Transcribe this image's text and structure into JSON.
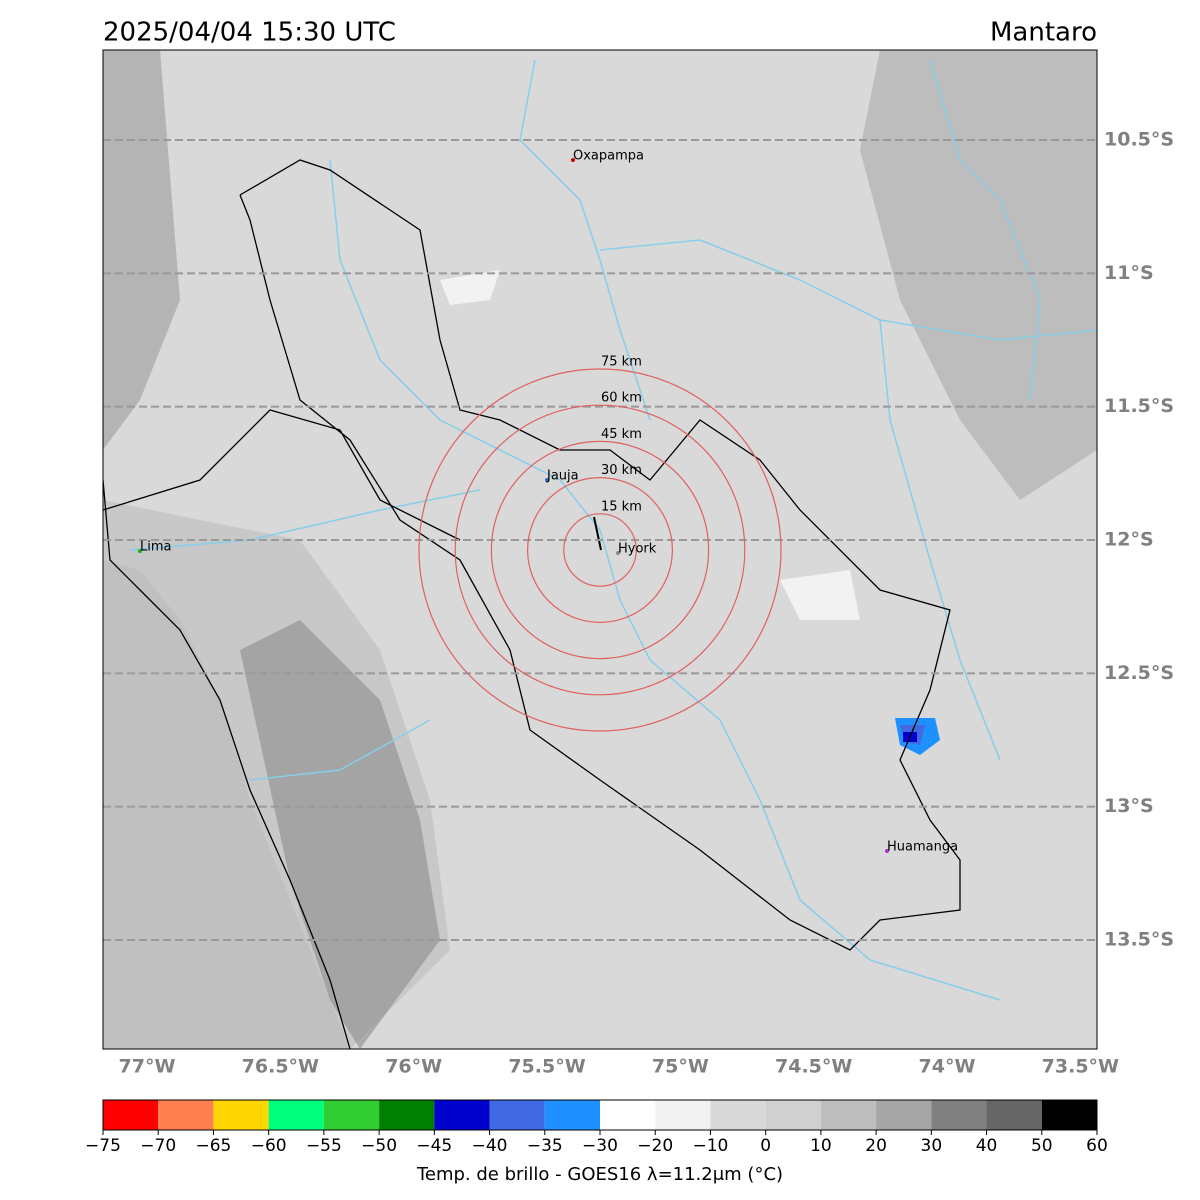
{
  "header": {
    "title": "2025/04/04 15:30 UTC",
    "region": "Mantaro"
  },
  "map": {
    "lat_ticks": [
      {
        "value": -10.5,
        "label": "10.5°S"
      },
      {
        "value": -11,
        "label": "11°S"
      },
      {
        "value": -11.5,
        "label": "11.5°S"
      },
      {
        "value": -12,
        "label": "12°S"
      },
      {
        "value": -12.5,
        "label": "12.5°S"
      },
      {
        "value": -13,
        "label": "13°S"
      },
      {
        "value": -13.5,
        "label": "13.5°S"
      }
    ],
    "lon_ticks": [
      {
        "value": -77,
        "label": "77°W"
      },
      {
        "value": -76.5,
        "label": "76.5°W"
      },
      {
        "value": -76,
        "label": "76°W"
      },
      {
        "value": -75.5,
        "label": "75.5°W"
      },
      {
        "value": -75,
        "label": "75°W"
      },
      {
        "value": -74.5,
        "label": "74.5°W"
      },
      {
        "value": -74,
        "label": "74°W"
      },
      {
        "value": -73.5,
        "label": "73.5°W"
      }
    ],
    "places": [
      "Oxapampa",
      "Jauja",
      "Lima",
      "Hyork",
      "Huamanga"
    ],
    "rings": [
      "15 km",
      "30 km",
      "45 km",
      "60 km",
      "75 km"
    ],
    "grid": true
  },
  "colorbar": {
    "ticks": [
      {
        "value": -75,
        "label": "−75"
      },
      {
        "value": -70,
        "label": "−70"
      },
      {
        "value": -65,
        "label": "−65"
      },
      {
        "value": -60,
        "label": "−60"
      },
      {
        "value": -55,
        "label": "−55"
      },
      {
        "value": -50,
        "label": "−50"
      },
      {
        "value": -45,
        "label": "−45"
      },
      {
        "value": -40,
        "label": "−40"
      },
      {
        "value": -35,
        "label": "−35"
      },
      {
        "value": -30,
        "label": "−30"
      },
      {
        "value": -20,
        "label": "−20"
      },
      {
        "value": -10,
        "label": "−10"
      },
      0,
      10,
      20,
      30,
      40,
      50,
      60
    ],
    "colors": [
      "#ff0000",
      "#ff7f50",
      "#ffd700",
      "#00ff7f",
      "#32cd32",
      "#008000",
      "#0000cd",
      "#4169e1",
      "#1e90ff",
      "#ffffff",
      "#f2f2f2",
      "#d9d9d9",
      "#d0d0d0",
      "#bebebe",
      "#a6a6a6",
      "#808080",
      "#666666",
      "#000000"
    ],
    "label": "Temp. de brillo - GOES16 λ=11.2μm (°C)"
  }
}
